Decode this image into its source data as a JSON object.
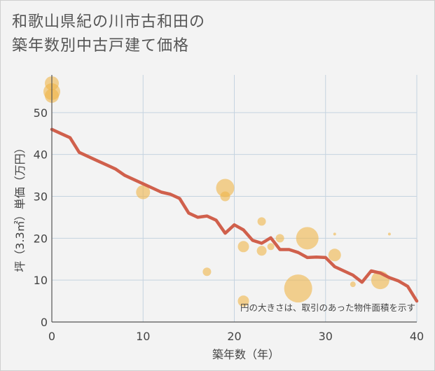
{
  "title_lines": [
    "和歌山県紀の川市古和田の",
    "築年数別中古戸建て価格"
  ],
  "chart_data": {
    "type": "scatter",
    "title": "和歌山県紀の川市古和田の築年数別中古戸建て価格",
    "xlabel": "築年数（年）",
    "ylabel": "坪（3.3㎡）単価（万円）",
    "xlim": [
      0,
      40
    ],
    "ylim": [
      0,
      59
    ],
    "xticks": [
      0,
      10,
      20,
      30,
      40
    ],
    "yticks": [
      0,
      10,
      20,
      30,
      40,
      50
    ],
    "grid": true,
    "note": "円の大きさは、取引のあった物件面積を示す",
    "colors": {
      "bubble": "#f0b64a",
      "line": "#d0604c",
      "grid": "#c5d3e0",
      "axis": "#555555"
    },
    "bubbles": [
      {
        "x": 0,
        "y": 57,
        "s": 10
      },
      {
        "x": 0,
        "y": 55,
        "s": 12
      },
      {
        "x": 0,
        "y": 54,
        "s": 10
      },
      {
        "x": 10,
        "y": 31,
        "s": 10
      },
      {
        "x": 17,
        "y": 12,
        "s": 6
      },
      {
        "x": 19,
        "y": 32,
        "s": 13
      },
      {
        "x": 19,
        "y": 30,
        "s": 7
      },
      {
        "x": 21,
        "y": 18,
        "s": 8
      },
      {
        "x": 21,
        "y": 5,
        "s": 8
      },
      {
        "x": 23,
        "y": 24,
        "s": 6
      },
      {
        "x": 23,
        "y": 17,
        "s": 7
      },
      {
        "x": 24,
        "y": 18,
        "s": 5
      },
      {
        "x": 25,
        "y": 20,
        "s": 6
      },
      {
        "x": 27,
        "y": 8,
        "s": 20
      },
      {
        "x": 28,
        "y": 20,
        "s": 16
      },
      {
        "x": 31,
        "y": 16,
        "s": 9
      },
      {
        "x": 31,
        "y": 21,
        "s": 2
      },
      {
        "x": 33,
        "y": 9,
        "s": 4
      },
      {
        "x": 36,
        "y": 10,
        "s": 13
      },
      {
        "x": 37,
        "y": 21,
        "s": 2
      }
    ],
    "series": [
      {
        "name": "trend",
        "x": [
          0,
          1,
          2,
          3,
          4,
          5,
          6,
          7,
          8,
          9,
          10,
          11,
          12,
          13,
          14,
          15,
          16,
          17,
          18,
          19,
          20,
          21,
          22,
          23,
          24,
          25,
          26,
          27,
          28,
          29,
          30,
          31,
          32,
          33,
          34,
          35,
          36,
          37,
          38,
          39,
          40
        ],
        "values": [
          46,
          45,
          44,
          40.5,
          39.5,
          38.5,
          37.5,
          36.5,
          35,
          34,
          33,
          32,
          31,
          30.5,
          29.5,
          26,
          25,
          25.3,
          24.3,
          21.2,
          23.2,
          22,
          19.5,
          18.8,
          20.1,
          17.3,
          17.3,
          16.6,
          15.4,
          15.5,
          15.4,
          13.2,
          12.2,
          11.2,
          9.5,
          12.2,
          11.7,
          10.6,
          9.8,
          8.5,
          5
        ]
      }
    ]
  }
}
